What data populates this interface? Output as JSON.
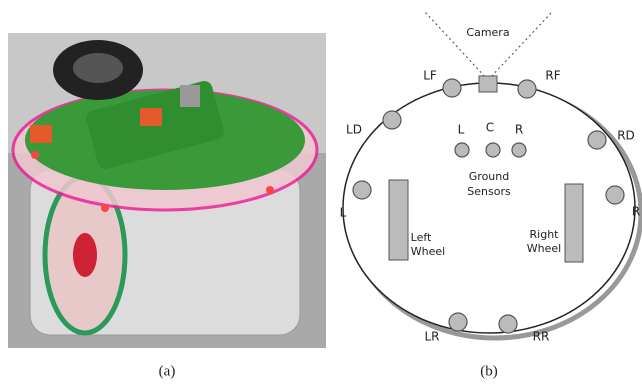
{
  "figure": {
    "panel_a": {
      "caption": "(a)"
    },
    "panel_b": {
      "caption": "(b)",
      "camera": "Camera",
      "sensors": {
        "LF": "LF",
        "RF": "RF",
        "LD": "LD",
        "RD": "RD",
        "L": "L",
        "R": "R",
        "LR": "LR",
        "RR": "RR"
      },
      "ground_sensors": {
        "labels": [
          "L",
          "C",
          "R"
        ],
        "title": [
          "Ground",
          "Sensors"
        ]
      },
      "left_wheel": [
        "Left",
        "Wheel"
      ],
      "right_wheel": [
        "Right",
        "Wheel"
      ]
    }
  }
}
